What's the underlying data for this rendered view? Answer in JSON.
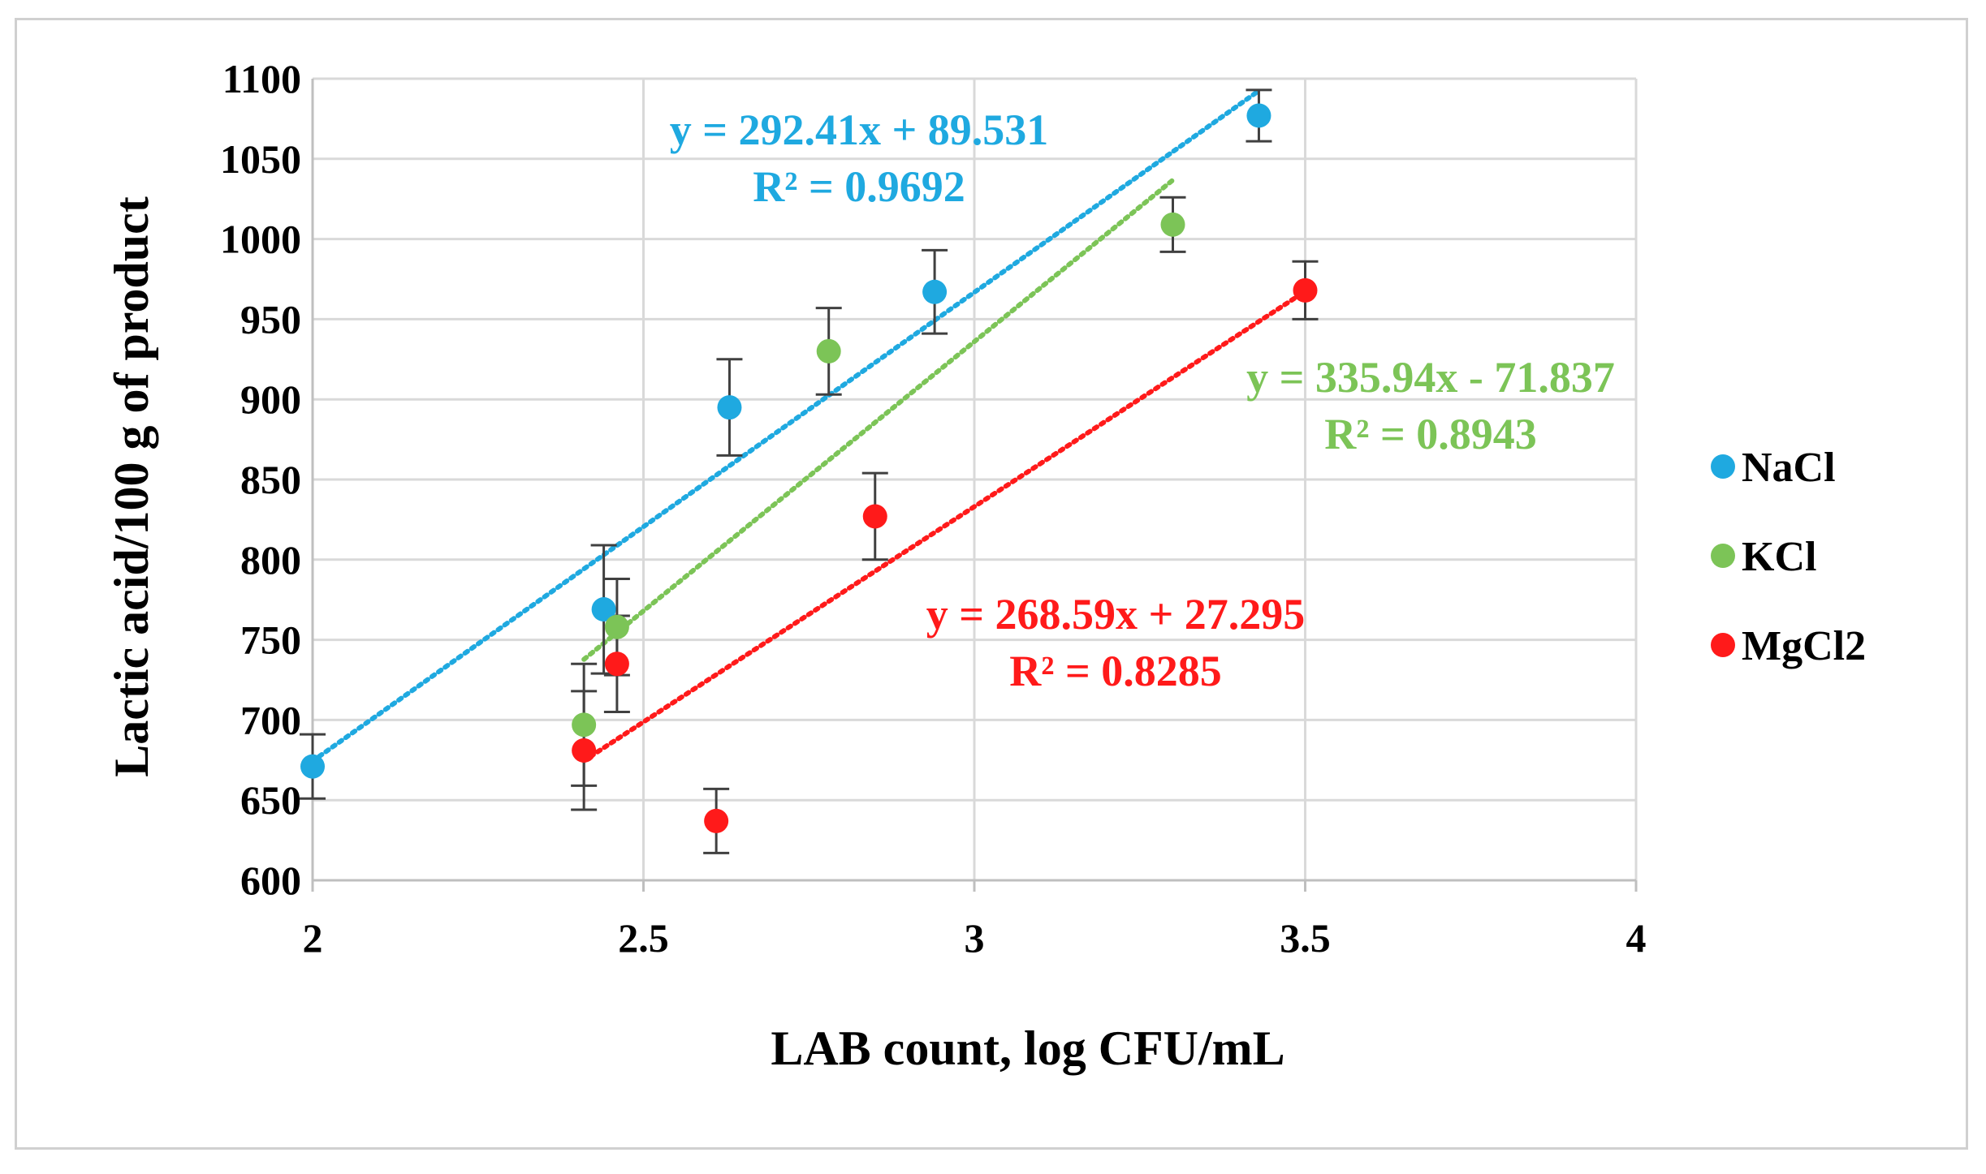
{
  "chart_data": {
    "type": "scatter",
    "title": "",
    "xlabel": "LAB count, log CFU/mL",
    "ylabel": "Lactic acid/100 g of product",
    "xlim": [
      2,
      4
    ],
    "ylim": [
      600,
      1100
    ],
    "xticks": [
      2,
      2.5,
      3,
      3.5,
      4
    ],
    "xtick_labels": [
      "2",
      "2.5",
      "3",
      "3.5",
      "4"
    ],
    "yticks": [
      600,
      650,
      700,
      750,
      800,
      850,
      900,
      950,
      1000,
      1050,
      1100
    ],
    "ytick_labels": [
      "600",
      "650",
      "700",
      "750",
      "800",
      "850",
      "900",
      "950",
      "1000",
      "1050",
      "1100"
    ],
    "grid": "horizontal",
    "legend_position": "right",
    "series": [
      {
        "name": "NaCl",
        "color": "#1fa9e0",
        "points": [
          {
            "x": 2.0,
            "y": 671,
            "err": 20
          },
          {
            "x": 2.44,
            "y": 769,
            "err": 40
          },
          {
            "x": 2.63,
            "y": 895,
            "err": 30
          },
          {
            "x": 2.94,
            "y": 967,
            "err": 26
          },
          {
            "x": 3.43,
            "y": 1077,
            "err": 16
          }
        ],
        "trendline": {
          "x0": 2.0,
          "x1": 3.43,
          "slope": 292.41,
          "intercept": 89.531
        },
        "equation": "y = 292.41x + 89.531",
        "r2": "R² = 0.9692"
      },
      {
        "name": "KCl",
        "color": "#7cc457",
        "points": [
          {
            "x": 2.41,
            "y": 697,
            "err": 38
          },
          {
            "x": 2.46,
            "y": 758,
            "err": 30
          },
          {
            "x": 2.78,
            "y": 930,
            "err": 27
          },
          {
            "x": 3.3,
            "y": 1009,
            "err": 17
          }
        ],
        "trendline": {
          "x0": 2.41,
          "x1": 3.3,
          "slope": 335.94,
          "intercept": -71.837
        },
        "equation": "y = 335.94x - 71.837",
        "r2": "R² = 0.8943"
      },
      {
        "name": "MgCl2",
        "color": "#ff1a1a",
        "points": [
          {
            "x": 2.41,
            "y": 681,
            "err": 37
          },
          {
            "x": 2.46,
            "y": 735,
            "err": 30
          },
          {
            "x": 2.61,
            "y": 637,
            "err": 20
          },
          {
            "x": 2.85,
            "y": 827,
            "err": 27
          },
          {
            "x": 3.5,
            "y": 968,
            "err": 18
          }
        ],
        "trendline": {
          "x0": 2.41,
          "x1": 3.5,
          "slope": 268.59,
          "intercept": 27.295
        },
        "equation": "y = 268.59x + 27.295",
        "r2": "R² = 0.8285"
      }
    ]
  }
}
